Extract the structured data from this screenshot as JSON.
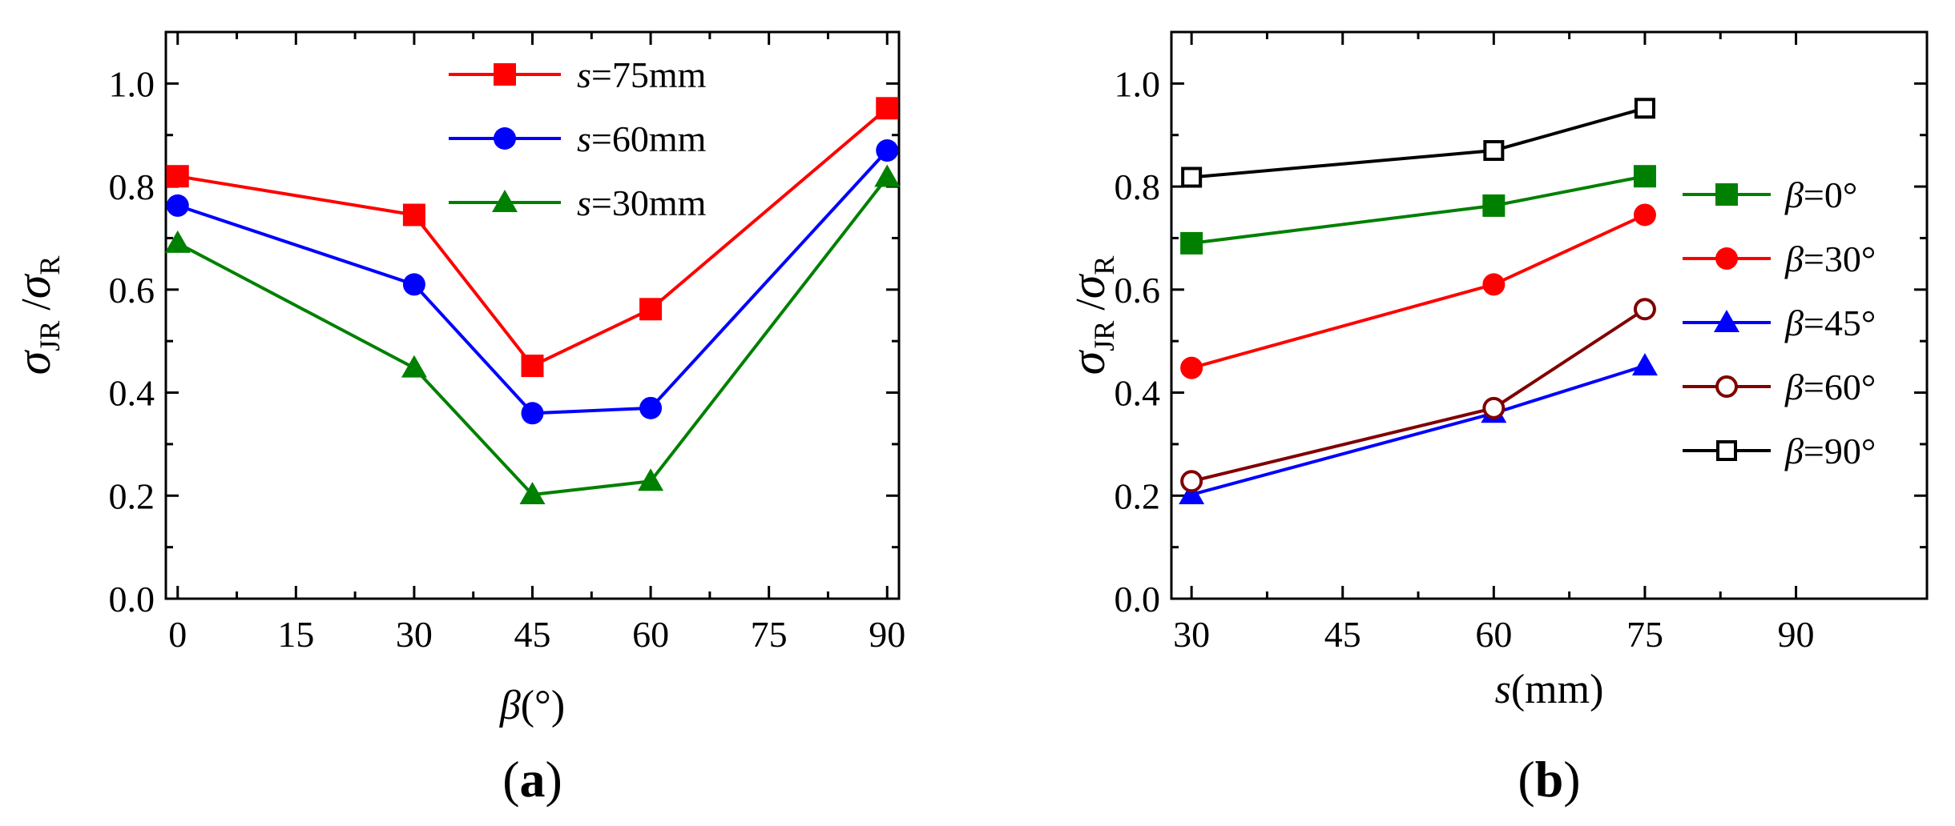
{
  "chart_data": [
    {
      "id": "a",
      "type": "line",
      "panel_label": "a",
      "xlabel": {
        "symbol": "β",
        "unit": "(°)"
      },
      "ylabel": {
        "num": "σ",
        "num_sub": "JR",
        "den": "σ",
        "den_sub": "R"
      },
      "xlim": [
        -1.5,
        91.5
      ],
      "ylim": [
        0.0,
        1.1
      ],
      "xticks": [
        0,
        15,
        30,
        45,
        60,
        75,
        90
      ],
      "yticks": [
        0.0,
        0.2,
        0.4,
        0.6,
        0.8,
        1.0
      ],
      "series": [
        {
          "name": "s=75mm",
          "var": "s",
          "eq": "=75mm",
          "color": "#ff0000",
          "marker": "square-filled",
          "x": [
            0,
            30,
            45,
            60,
            90
          ],
          "y": [
            0.82,
            0.745,
            0.452,
            0.562,
            0.952
          ]
        },
        {
          "name": "s=60mm",
          "var": "s",
          "eq": "=60mm",
          "color": "#0000ff",
          "marker": "circle-filled",
          "x": [
            0,
            30,
            45,
            60,
            90
          ],
          "y": [
            0.763,
            0.61,
            0.36,
            0.37,
            0.87
          ]
        },
        {
          "name": "s=30mm",
          "var": "s",
          "eq": "=30mm",
          "color": "#008000",
          "marker": "triangle-filled",
          "x": [
            0,
            30,
            45,
            60,
            90
          ],
          "y": [
            0.69,
            0.448,
            0.202,
            0.228,
            0.818
          ]
        }
      ]
    },
    {
      "id": "b",
      "type": "line",
      "panel_label": "b",
      "xlabel": {
        "symbol": "s",
        "unit": "(mm)"
      },
      "ylabel": {
        "num": "σ",
        "num_sub": "JR",
        "den": "σ",
        "den_sub": "R"
      },
      "xlim": [
        28,
        103
      ],
      "ylim": [
        0.0,
        1.1
      ],
      "xticks": [
        30,
        45,
        60,
        75,
        90
      ],
      "yticks": [
        0.0,
        0.2,
        0.4,
        0.6,
        0.8,
        1.0
      ],
      "series": [
        {
          "name": "β=0°",
          "var": "β",
          "eq": "=0°",
          "color": "#008000",
          "marker": "square-filled",
          "x": [
            30,
            60,
            75
          ],
          "y": [
            0.69,
            0.763,
            0.82
          ]
        },
        {
          "name": "β=30°",
          "var": "β",
          "eq": "=30°",
          "color": "#ff0000",
          "marker": "circle-filled",
          "x": [
            30,
            60,
            75
          ],
          "y": [
            0.448,
            0.61,
            0.745
          ]
        },
        {
          "name": "β=45°",
          "var": "β",
          "eq": "=45°",
          "color": "#0000ff",
          "marker": "triangle-filled",
          "x": [
            30,
            60,
            75
          ],
          "y": [
            0.202,
            0.36,
            0.452
          ]
        },
        {
          "name": "β=60°",
          "var": "β",
          "eq": "=60°",
          "color": "#800000",
          "marker": "circle-open",
          "x": [
            30,
            60,
            75
          ],
          "y": [
            0.228,
            0.37,
            0.562
          ]
        },
        {
          "name": "β=90°",
          "var": "β",
          "eq": "=90°",
          "color": "#000000",
          "marker": "square-open",
          "x": [
            30,
            60,
            75
          ],
          "y": [
            0.818,
            0.87,
            0.952
          ]
        }
      ]
    }
  ]
}
